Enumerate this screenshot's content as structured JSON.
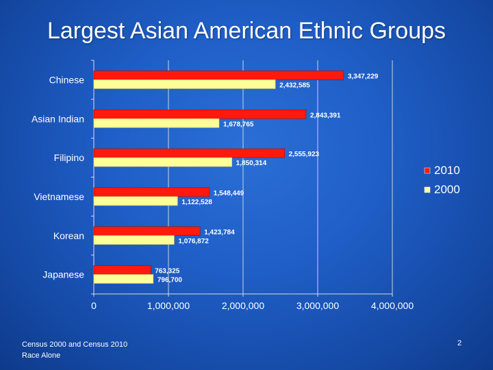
{
  "slide": {
    "title": "Largest Asian American Ethnic Groups",
    "footer_line1": "Census 2000 and Census 2010",
    "footer_line2": "Race Alone",
    "page_number": "2"
  },
  "chart_data": {
    "type": "bar",
    "orientation": "horizontal",
    "categories": [
      "Chinese",
      "Asian Indian",
      "Filipino",
      "Vietnamese",
      "Korean",
      "Japanese"
    ],
    "series": [
      {
        "name": "2010",
        "color": "#ff1a0d",
        "values": [
          3347229,
          2843391,
          2555923,
          1548449,
          1423784,
          763325
        ],
        "labels": [
          "3,347,229",
          "2,843,391",
          "2,555,923",
          "1,548,449",
          "1,423,784",
          "763,325"
        ]
      },
      {
        "name": "2000",
        "color": "#ffff99",
        "values": [
          2432585,
          1678765,
          1850314,
          1122528,
          1076872,
          796700
        ],
        "labels": [
          "2,432,585",
          "1,678,765",
          "1,850,314",
          "1,122,528",
          "1,076,872",
          "796,700"
        ]
      }
    ],
    "xlim": [
      0,
      4000000
    ],
    "xticks": [
      0,
      1000000,
      2000000,
      3000000,
      4000000
    ],
    "xtick_labels": [
      "0",
      "1,000,000",
      "2,000,000",
      "3,000,000",
      "4,000,000"
    ],
    "grid": true,
    "legend_position": "right"
  }
}
